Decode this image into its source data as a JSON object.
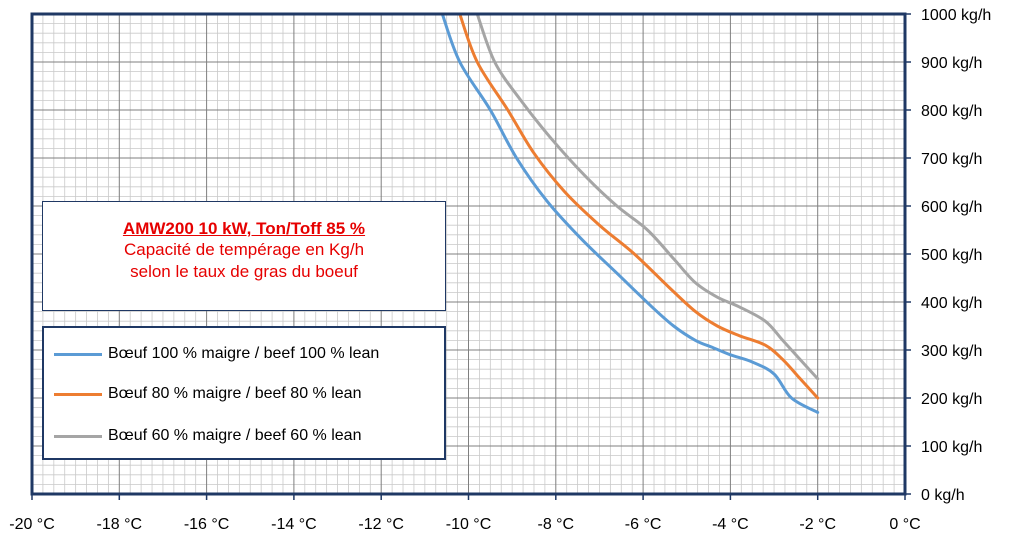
{
  "chart_data": {
    "type": "line",
    "title": "AMW200  10 kW,  Ton/Toff 85 %",
    "subtitle_lines": [
      "Capacité de tempérage en Kg/h",
      "selon le taux de gras du boeuf"
    ],
    "x_tick_labels": [
      "-20 °C",
      "-18 °C",
      "-16 °C",
      "-14 °C",
      "-12 °C",
      "-10 °C",
      "-8 °C",
      "-6 °C",
      "-4 °C",
      "-2 °C",
      "0 °C"
    ],
    "x_ticks": [
      -20,
      -18,
      -16,
      -14,
      -12,
      -10,
      -8,
      -6,
      -4,
      -2,
      0
    ],
    "y_tick_labels": [
      "0 kg/h",
      "100 kg/h",
      "200 kg/h",
      "300 kg/h",
      "400 kg/h",
      "500 kg/h",
      "600 kg/h",
      "700 kg/h",
      "800 kg/h",
      "900 kg/h",
      "1000 kg/h"
    ],
    "y_ticks": [
      0,
      100,
      200,
      300,
      400,
      500,
      600,
      700,
      800,
      900,
      1000
    ],
    "xlim": [
      -20,
      0
    ],
    "ylim": [
      0,
      1000
    ],
    "grid": true,
    "legend_position": "left",
    "series": [
      {
        "name": "Bœuf 100 % maigre / beef 100 % lean",
        "color": "#5b9bd5",
        "points": [
          [
            -10.6,
            1000
          ],
          [
            -10.2,
            900
          ],
          [
            -9.5,
            800
          ],
          [
            -8.9,
            700
          ],
          [
            -8.2,
            610
          ],
          [
            -7.4,
            530
          ],
          [
            -6.6,
            460
          ],
          [
            -5.8,
            390
          ],
          [
            -5.3,
            350
          ],
          [
            -4.8,
            320
          ],
          [
            -4.4,
            305
          ],
          [
            -4.0,
            290
          ],
          [
            -3.5,
            275
          ],
          [
            -3.0,
            250
          ],
          [
            -2.6,
            200
          ],
          [
            -2.0,
            170
          ]
        ]
      },
      {
        "name": "Bœuf 80 % maigre /  beef 80 % lean",
        "color": "#ed7d31",
        "points": [
          [
            -10.2,
            1000
          ],
          [
            -9.8,
            900
          ],
          [
            -9.1,
            800
          ],
          [
            -8.5,
            710
          ],
          [
            -7.8,
            630
          ],
          [
            -7.0,
            560
          ],
          [
            -6.2,
            500
          ],
          [
            -5.4,
            430
          ],
          [
            -4.8,
            380
          ],
          [
            -4.3,
            350
          ],
          [
            -3.8,
            330
          ],
          [
            -3.2,
            310
          ],
          [
            -2.8,
            280
          ],
          [
            -2.4,
            240
          ],
          [
            -2.0,
            200
          ]
        ]
      },
      {
        "name": "Bœuf 60 % maigre / beef 60 % lean",
        "color": "#a5a5a5",
        "points": [
          [
            -9.8,
            1000
          ],
          [
            -9.4,
            900
          ],
          [
            -8.8,
            820
          ],
          [
            -8.1,
            740
          ],
          [
            -7.3,
            660
          ],
          [
            -6.6,
            600
          ],
          [
            -5.9,
            550
          ],
          [
            -5.3,
            490
          ],
          [
            -4.8,
            440
          ],
          [
            -4.3,
            410
          ],
          [
            -3.8,
            390
          ],
          [
            -3.2,
            360
          ],
          [
            -2.8,
            320
          ],
          [
            -2.4,
            280
          ],
          [
            -2.0,
            240
          ]
        ]
      }
    ]
  }
}
